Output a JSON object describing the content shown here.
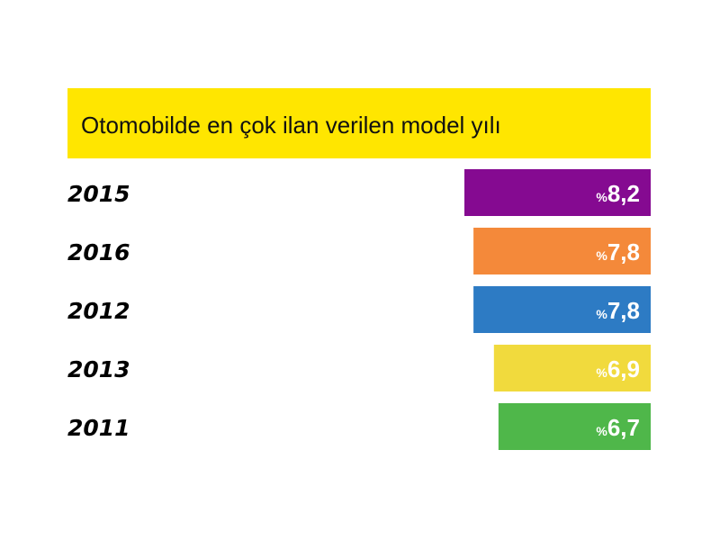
{
  "chart_data": {
    "type": "bar",
    "orientation": "horizontal",
    "title": "Otomobilde en çok ilan verilen model yılı",
    "title_background": "#FFE600",
    "value_prefix": "%",
    "categories": [
      "2015",
      "2016",
      "2012",
      "2013",
      "2011"
    ],
    "values": [
      8.2,
      7.8,
      7.8,
      6.9,
      6.7
    ],
    "value_labels": [
      "8,2",
      "7,8",
      "7,8",
      "6,9",
      "6,7"
    ],
    "colors": [
      "#850A91",
      "#F4893A",
      "#2D7BC4",
      "#F1DA3D",
      "#4FB74A"
    ],
    "grid": false,
    "legend": "none"
  }
}
